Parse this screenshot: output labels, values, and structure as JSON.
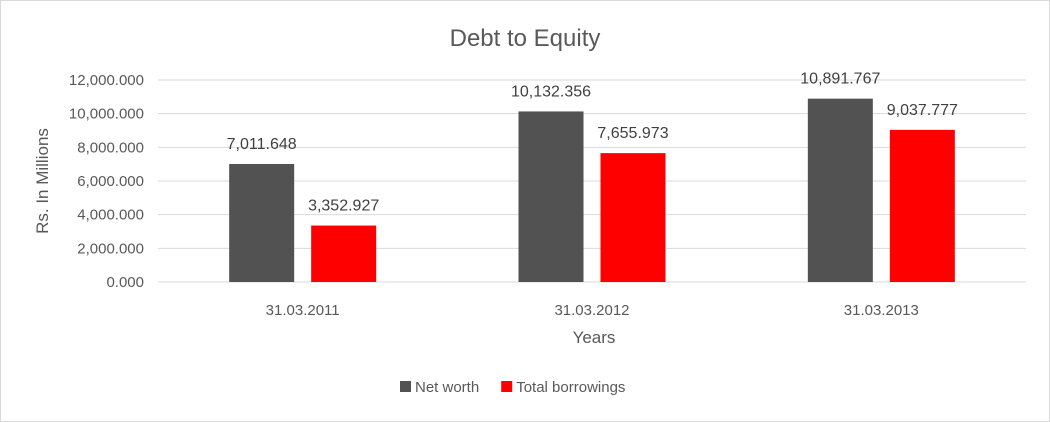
{
  "chart_data": {
    "type": "bar",
    "title": "Debt to Equity",
    "xlabel": "Years",
    "ylabel": "Rs. In Millions",
    "categories": [
      "31.03.2011",
      "31.03.2012",
      "31.03.2013"
    ],
    "series": [
      {
        "name": "Net worth",
        "color": "#525252",
        "values": [
          7011.648,
          10132.356,
          10891.767
        ],
        "labels": [
          "7,011.648",
          "10,132.356",
          "10,891.767"
        ]
      },
      {
        "name": "Total borrowings",
        "color": "#ff0000",
        "values": [
          3352.927,
          7655.973,
          9037.777
        ],
        "labels": [
          "3,352.927",
          "7,655.973",
          "9,037.777"
        ]
      }
    ],
    "ylim": [
      0,
      12000
    ],
    "yticks": [
      0,
      2000,
      4000,
      6000,
      8000,
      10000,
      12000
    ],
    "ytick_labels": [
      "0.000",
      "2,000.000",
      "4,000.000",
      "6,000.000",
      "8,000.000",
      "10,000.000",
      "12,000.000"
    ],
    "grid": true,
    "legend_position": "bottom"
  }
}
